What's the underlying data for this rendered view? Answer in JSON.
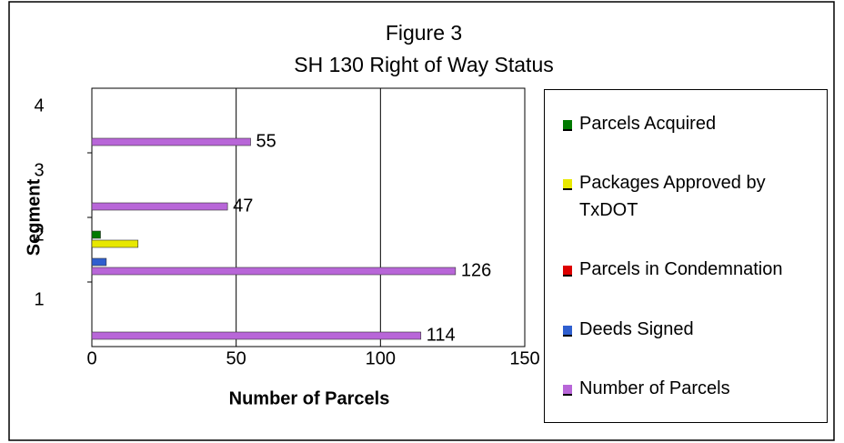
{
  "chart_data": {
    "type": "hbar",
    "title": "Figure 3",
    "subtitle": "SH 130 Right of Way Status",
    "x_label": "Number of Parcels",
    "y_label": "Segment",
    "categories": [
      "1",
      "2",
      "3",
      "4"
    ],
    "series": [
      {
        "name": "Parcels Acquired",
        "color": "#007a00",
        "values": [
          0,
          3,
          0,
          0
        ]
      },
      {
        "name": "Packages Approved by TxDOT",
        "color": "#e8e800",
        "values": [
          0,
          16,
          0,
          0
        ]
      },
      {
        "name": "Parcels in Condemnation",
        "color": "#dd0000",
        "values": [
          0,
          0,
          0,
          0
        ]
      },
      {
        "name": "Deeds Signed",
        "color": "#2f5fcf",
        "values": [
          0,
          5,
          0,
          0
        ]
      },
      {
        "name": "Number of Parcels",
        "color": "#b866d8",
        "values": [
          114,
          126,
          47,
          55
        ],
        "data_labels": true
      }
    ],
    "xlim": [
      0,
      150
    ],
    "xticks": [
      0,
      50,
      100,
      150
    ],
    "grid": true,
    "legend": "right"
  }
}
